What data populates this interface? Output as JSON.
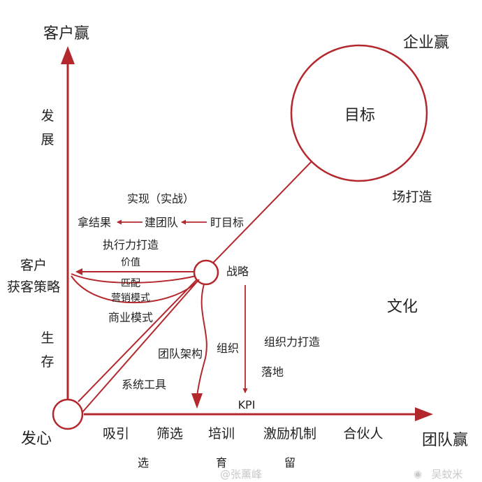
{
  "axes": {
    "y_axis_label": "客户赢",
    "x_axis_label": "团队赢",
    "diagonal_label": "企业赢",
    "origin_label": "发心"
  },
  "y_axis_stages": {
    "upper": [
      "发",
      "展"
    ],
    "lower": [
      "生",
      "存"
    ]
  },
  "customer_node": {
    "title": "客户",
    "subtitle": "获客策略"
  },
  "goal_circle": {
    "label": "目标"
  },
  "right_side": {
    "scene_build": "场打造",
    "culture": "文化",
    "org_build": "组织力打造",
    "landing": "落地",
    "strategy": "战略",
    "kpi": "KPI"
  },
  "execution": {
    "header": "实现（实战）",
    "steps": [
      "拿结果",
      "建团队",
      "盯目标"
    ],
    "power_build": "执行力打造"
  },
  "business_model": {
    "value": "价值",
    "match": "匹配",
    "marketing": "营销模式",
    "model": "商业模式"
  },
  "mid_labels": {
    "team_structure": "团队架构",
    "organization": "组织",
    "system_tools": "系统工具"
  },
  "x_axis_items": [
    {
      "top": "吸引",
      "bottom": ""
    },
    {
      "top": "筛选",
      "bottom": "选"
    },
    {
      "top": "培训",
      "bottom": "育"
    },
    {
      "top": "激励机制",
      "bottom": "留"
    },
    {
      "top": "合伙人",
      "bottom": ""
    }
  ],
  "watermarks": {
    "left": "@张薰峰",
    "right": "吴蚊米"
  },
  "colors": {
    "accent": "#b3282d",
    "text": "#222222",
    "watermark": "#c9c9c9"
  }
}
